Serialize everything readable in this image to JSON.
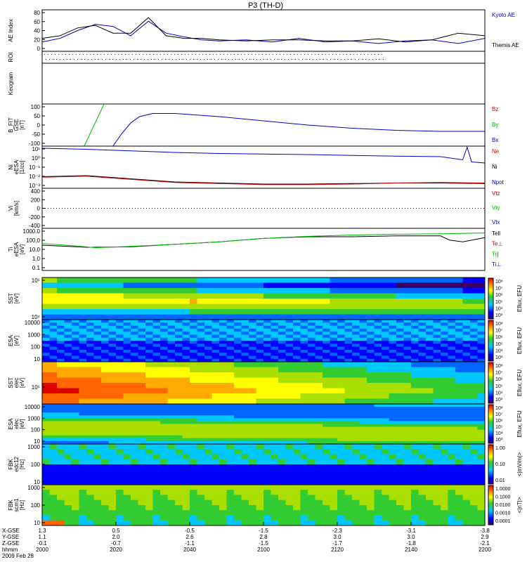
{
  "title": "P3 (TH-D)",
  "chart_data": {
    "type": "multi-panel",
    "x_ticks": [
      "2000",
      "2020",
      "2040",
      "2100",
      "2120",
      "2140",
      "2200"
    ],
    "panels": [
      {
        "id": "ae",
        "type": "line",
        "ylabel": [
          "AE Index"
        ],
        "yticks": [
          "80",
          "60",
          "40",
          "20",
          "0"
        ],
        "legend": [
          {
            "name": "Kyoto AE",
            "color": "#0000cc"
          },
          {
            "name": "Themis AE",
            "color": "#000000"
          }
        ],
        "series": [
          {
            "name": "Kyoto AE",
            "color": "#0000cc",
            "x": [
              0,
              4,
              8,
              12,
              16,
              20,
              24,
              28,
              32,
              36,
              40,
              46,
              52,
              58,
              64,
              70,
              76,
              82,
              88,
              94,
              100
            ],
            "y": [
              18,
              25,
              40,
              52,
              48,
              30,
              58,
              35,
              28,
              22,
              20,
              22,
              18,
              25,
              18,
              20,
              15,
              20,
              22,
              15,
              25
            ]
          },
          {
            "name": "Themis AE",
            "color": "#000000",
            "x": [
              0,
              4,
              8,
              12,
              16,
              20,
              24,
              28,
              32,
              36,
              40,
              46,
              52,
              58,
              64,
              70,
              76,
              82,
              88,
              94,
              100
            ],
            "y": [
              25,
              30,
              45,
              50,
              35,
              35,
              65,
              30,
              25,
              25,
              22,
              20,
              22,
              22,
              20,
              20,
              24,
              18,
              22,
              35,
              30
            ]
          }
        ]
      },
      {
        "id": "roi",
        "type": "ticks",
        "ylabel": [
          "ROI"
        ],
        "yticks": []
      },
      {
        "id": "keogram",
        "type": "empty",
        "ylabel": [
          "Keogram"
        ],
        "yticks": []
      },
      {
        "id": "bfit",
        "type": "line",
        "ylabel": [
          "B_FIT",
          "GSE",
          "[nT]"
        ],
        "yticks": [
          "100",
          "50",
          "0",
          "-50",
          "-100"
        ],
        "legend": [
          {
            "name": "Bz",
            "color": "#cc0000"
          },
          {
            "name": "By",
            "color": "#00bb00"
          },
          {
            "name": "Bx",
            "color": "#0000cc"
          }
        ],
        "series": [
          {
            "name": "By",
            "color": "#00bb00",
            "x": [
              9.5,
              14
            ],
            "y": [
              -100,
              100
            ]
          },
          {
            "name": "Bx",
            "color": "#0000cc",
            "x": [
              16,
              18,
              20,
              22,
              25,
              30,
              40,
              50,
              60,
              70,
              80,
              90,
              100
            ],
            "y": [
              -100,
              -40,
              10,
              40,
              55,
              55,
              40,
              20,
              0,
              -15,
              -25,
              -30,
              -30
            ]
          }
        ]
      },
      {
        "id": "ni",
        "type": "line",
        "ylabel": [
          "Ni",
          "eESA",
          "[1/cc]"
        ],
        "yticks": [
          "10¹",
          "10⁰",
          "10⁻¹",
          "10⁻²",
          "10⁻³"
        ],
        "legend": [
          {
            "name": "Ne",
            "color": "#cc0000"
          },
          {
            "name": "Ni",
            "color": "#000000"
          },
          {
            "name": "Npot",
            "color": "#0000cc"
          }
        ],
        "series": [
          {
            "name": "Npot",
            "color": "#0000cc",
            "x": [
              0,
              10,
              20,
              30,
              40,
              50,
              60,
              70,
              80,
              90,
              95,
              96,
              97,
              100
            ],
            "y": [
              0.8,
              0.7,
              0.55,
              0.4,
              0.3,
              0.25,
              0.2,
              0.12,
              0.05,
              0,
              -0.3,
              0.9,
              -0.5,
              -0.6
            ]
          },
          {
            "name": "Ni",
            "color": "#000000",
            "x": [
              0,
              10,
              20,
              30,
              40,
              50,
              60,
              70,
              80,
              90,
              100
            ],
            "y": [
              -1.9,
              -1.8,
              -2.1,
              -2.4,
              -2.5,
              -2.6,
              -2.6,
              -2.55,
              -2.5,
              -2.5,
              -2.55
            ]
          },
          {
            "name": "Ne",
            "color": "#cc0000",
            "x": [
              0,
              10,
              20,
              30,
              40,
              50,
              60,
              70,
              80,
              90,
              100
            ],
            "y": [
              -1.95,
              -1.85,
              -2.15,
              -2.45,
              -2.55,
              -2.65,
              -2.65,
              -2.6,
              -2.5,
              -2.45,
              -2.5
            ]
          }
        ]
      },
      {
        "id": "vi",
        "type": "line",
        "ylabel": [
          "Vi",
          "[km/s]"
        ],
        "yticks": [
          "400",
          "200",
          "0",
          "-200",
          "-400"
        ],
        "legend": [
          {
            "name": "Vtz",
            "color": "#cc0000"
          },
          {
            "name": "Vty",
            "color": "#00bb00"
          },
          {
            "name": "Vtx",
            "color": "#0000cc"
          }
        ],
        "series": []
      },
      {
        "id": "ti",
        "type": "line",
        "ylabel": [
          "Ti",
          "eESA",
          "[eV]"
        ],
        "yticks": [
          "1000.0",
          "100.0",
          "10.0",
          "1.0",
          "0.1"
        ],
        "legend": [
          {
            "name": "Tell",
            "color": "#000000"
          },
          {
            "name": "Te⊥",
            "color": "#cc0000"
          },
          {
            "name": "Ti∥",
            "color": "#00bb00"
          },
          {
            "name": "Ti⊥",
            "color": "#0000cc"
          }
        ],
        "series": [
          {
            "name": "Tell",
            "color": "#000000",
            "x": [
              0,
              10,
              20,
              30,
              40,
              50,
              60,
              70,
              80,
              90,
              92,
              95,
              100
            ],
            "y": [
              2.0,
              1.75,
              1.8,
              2.1,
              2.4,
              2.8,
              3.0,
              3.0,
              3.1,
              3.1,
              2.6,
              2.4,
              2.9
            ]
          },
          {
            "name": "Ti∥",
            "color": "#00bb00",
            "x": [
              0,
              8,
              12,
              20,
              30,
              40,
              50,
              60,
              70,
              80,
              90,
              100
            ],
            "y": [
              2.2,
              1.9,
              1.7,
              1.85,
              2.1,
              2.4,
              2.8,
              3.05,
              3.2,
              3.3,
              3.35,
              3.45
            ]
          }
        ]
      },
      {
        "id": "sst1",
        "type": "heatmap",
        "ylabel": [
          "SST",
          "[eV]"
        ],
        "yticks": [
          "10⁵",
          "10⁴"
        ],
        "colorbar": {
          "label": "Eflux, EFU",
          "ticks": [
            "10⁸",
            "10⁷",
            "10⁶",
            "10⁵",
            "10⁴",
            "10³"
          ]
        }
      },
      {
        "id": "esa1",
        "type": "heatmap",
        "ylabel": [
          "ESA",
          "[eV]"
        ],
        "yticks": [
          "10000",
          "1000",
          "100",
          "10"
        ],
        "colorbar": {
          "label": "Eflux, EFU",
          "ticks": [
            "10⁸",
            "10⁷",
            "10⁶",
            "10⁵",
            "10⁴",
            "10³"
          ]
        }
      },
      {
        "id": "sst2",
        "type": "heatmap",
        "ylabel": [
          "SST",
          "elec",
          "[eV]"
        ],
        "yticks": [
          "10⁵"
        ],
        "colorbar": {
          "label": "Eflux, EFU",
          "ticks": [
            "10⁸",
            "10⁷",
            "10⁶",
            "10⁵",
            "10⁴",
            "10³"
          ]
        }
      },
      {
        "id": "esa2",
        "type": "heatmap",
        "ylabel": [
          "ESA",
          "elec",
          "[eV]"
        ],
        "yticks": [
          "10000",
          "1000",
          "100",
          "10"
        ],
        "colorbar": {
          "label": "Eflux, EFU",
          "ticks": [
            "10⁸",
            "10⁷",
            "10⁶",
            "10⁵",
            "10⁴",
            "10³"
          ]
        }
      },
      {
        "id": "fbk1",
        "type": "heatmap",
        "ylabel": [
          "FBK",
          "edc12",
          "[Hz]"
        ],
        "yticks": [
          "1000",
          "100",
          "10"
        ],
        "colorbar": {
          "label": "<|mV/m|>",
          "ticks": [
            "1.00",
            "0.10",
            "0.01"
          ]
        }
      },
      {
        "id": "fbk2",
        "type": "heatmap",
        "ylabel": [
          "FBK",
          "scm1",
          "[Hz]"
        ],
        "yticks": [
          "1000",
          "100",
          "10"
        ],
        "colorbar": {
          "label": "<|nT|>",
          "ticks": [
            "1.0000",
            "0.1000",
            "0.0100",
            "0.0010",
            "0.0001"
          ]
        }
      }
    ],
    "ephemeris": {
      "labels": [
        "X-GSE",
        "Y-GSE",
        "Z-GSE",
        "hhmm",
        "2009 Feb 28"
      ],
      "columns": [
        [
          "1.3",
          "1.1",
          "-0.1",
          "2000"
        ],
        [
          "0.5",
          "2.0",
          "-0.7",
          "2020"
        ],
        [
          "-0.5",
          "2.6",
          "-1.1",
          "2040"
        ],
        [
          "-1.5",
          "2.8",
          "-1.5",
          "2100"
        ],
        [
          "-2.3",
          "3.0",
          "-1.7",
          "2120"
        ],
        [
          "-3.1",
          "3.0",
          "-1.8",
          "2140"
        ],
        [
          "-3.8",
          "2.9",
          "-2.1",
          "2200"
        ]
      ]
    }
  }
}
